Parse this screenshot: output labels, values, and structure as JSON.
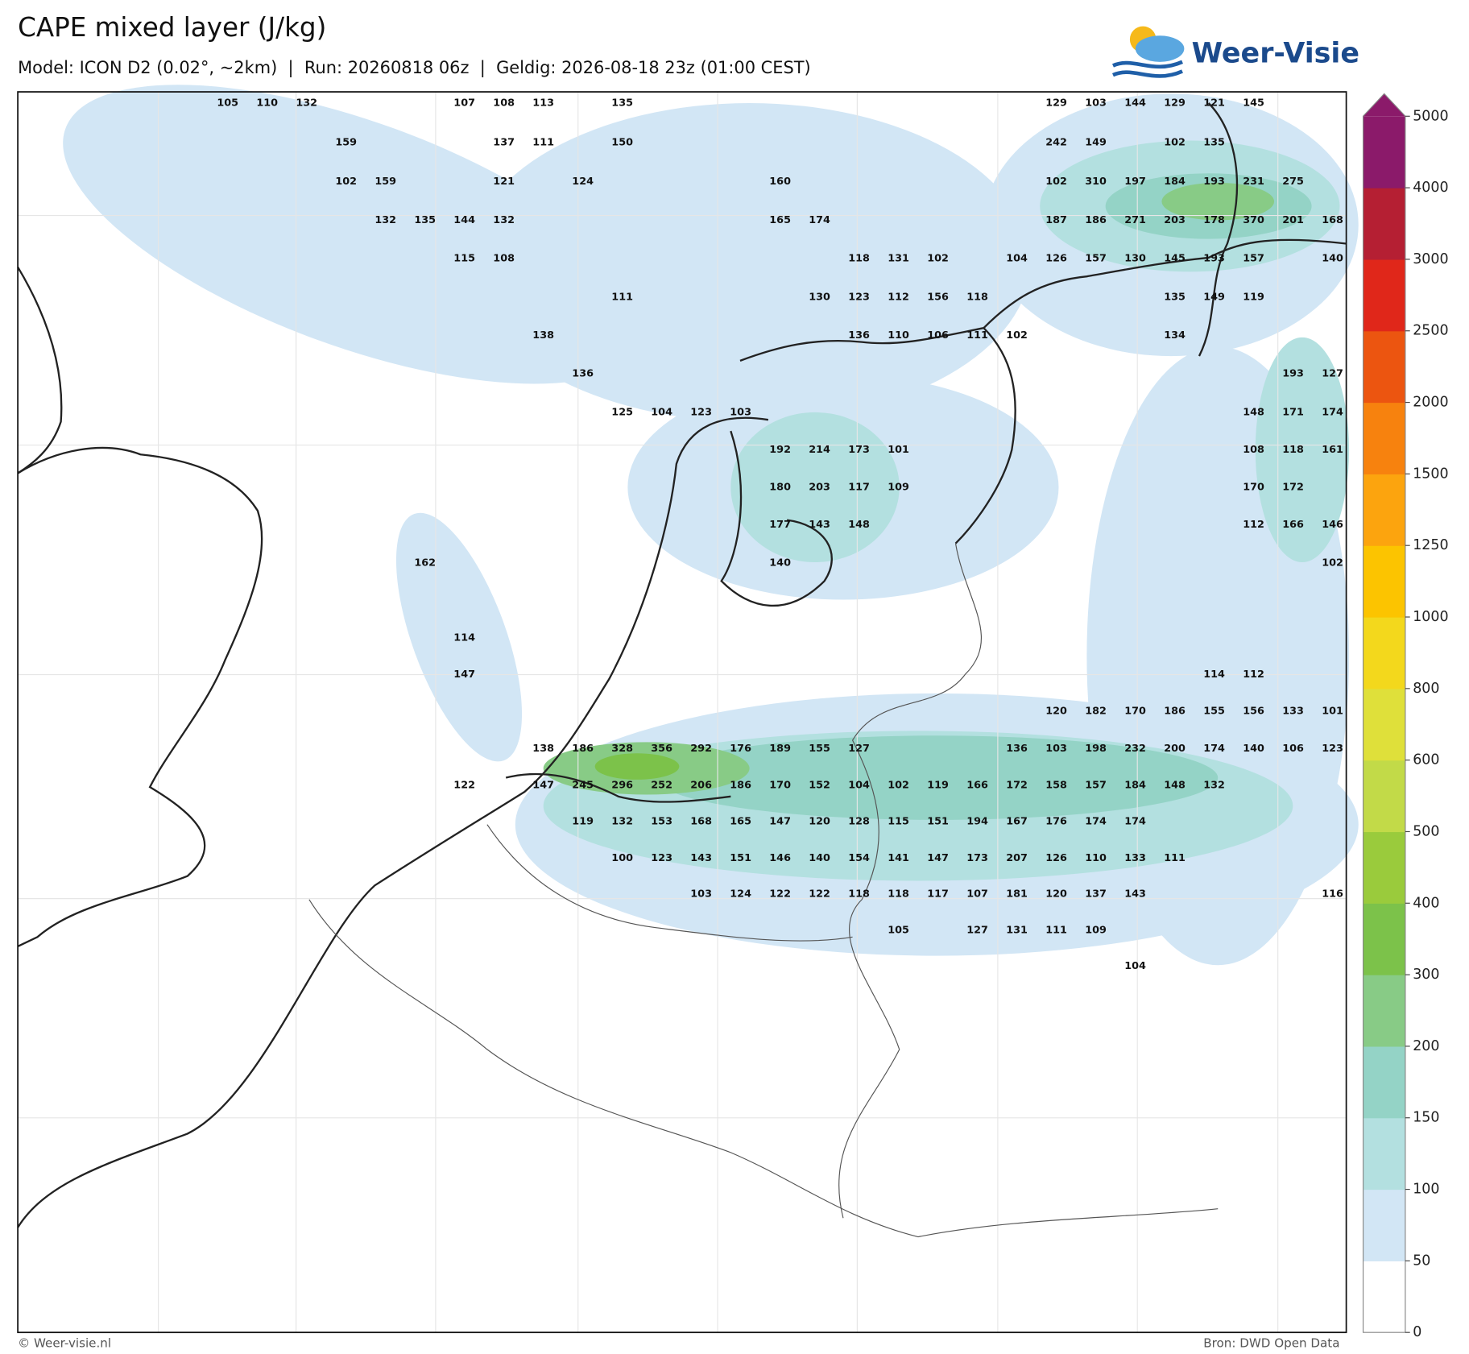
{
  "header": {
    "title": "CAPE mixed layer (J/kg)",
    "subtitle": "Model: ICON D2 (0.02°, ~2km)  |  Run: 20260818 06z  |  Geldig: 2026-08-18 23z (01:00 CEST)",
    "logo": "Weer-Visie"
  },
  "footer": {
    "left": "© Weer-visie.nl",
    "right": "Bron: DWD Open Data"
  },
  "colorbar": {
    "ticks": [
      0,
      50,
      100,
      150,
      200,
      300,
      400,
      500,
      600,
      800,
      1000,
      1250,
      1500,
      2000,
      2500,
      3000,
      4000,
      5000
    ],
    "colors": [
      "#ffffff",
      "#d2e6f5",
      "#b3e0e0",
      "#94d3c6",
      "#88cb86",
      "#7cc24a",
      "#9acb3c",
      "#c2da48",
      "#dfe03a",
      "#f3d81c",
      "#fcc400",
      "#fca40e",
      "#f7820e",
      "#ec5510",
      "#e0271a",
      "#b51f33",
      "#8b1a6a"
    ]
  },
  "map_labels": [
    [
      105,
      110,
      132,
      null,
      null,
      null,
      107,
      108,
      113,
      null,
      135,
      null,
      null,
      null,
      null,
      null,
      null,
      null,
      null,
      null,
      null,
      129,
      103,
      144,
      129,
      121,
      145,
      null,
      null
    ],
    [
      null,
      null,
      null,
      159,
      null,
      null,
      null,
      137,
      111,
      null,
      150,
      null,
      null,
      null,
      null,
      null,
      null,
      null,
      null,
      null,
      null,
      242,
      149,
      null,
      102,
      135,
      null,
      null,
      null
    ],
    [
      null,
      null,
      null,
      102,
      159,
      null,
      null,
      121,
      null,
      124,
      null,
      null,
      null,
      null,
      160,
      null,
      null,
      null,
      null,
      null,
      null,
      102,
      310,
      197,
      184,
      193,
      231,
      275,
      null
    ],
    [
      null,
      null,
      null,
      null,
      132,
      135,
      144,
      132,
      null,
      null,
      null,
      null,
      null,
      null,
      165,
      174,
      null,
      null,
      null,
      null,
      null,
      187,
      186,
      271,
      203,
      178,
      370,
      201,
      168
    ],
    [
      null,
      null,
      null,
      null,
      null,
      null,
      115,
      108,
      null,
      null,
      null,
      null,
      null,
      null,
      null,
      null,
      118,
      131,
      102,
      null,
      104,
      126,
      157,
      130,
      145,
      193,
      157,
      null,
      140
    ],
    [
      null,
      null,
      null,
      null,
      null,
      null,
      null,
      null,
      null,
      null,
      111,
      null,
      null,
      null,
      null,
      130,
      123,
      112,
      156,
      118,
      null,
      null,
      null,
      null,
      135,
      149,
      119,
      null,
      null
    ],
    [
      null,
      null,
      null,
      null,
      null,
      null,
      null,
      null,
      138,
      null,
      null,
      null,
      null,
      null,
      null,
      null,
      136,
      110,
      106,
      111,
      102,
      null,
      null,
      null,
      134,
      null,
      null,
      null,
      null
    ],
    [
      null,
      null,
      null,
      null,
      null,
      null,
      null,
      null,
      null,
      136,
      null,
      null,
      null,
      null,
      null,
      null,
      null,
      null,
      null,
      null,
      null,
      null,
      null,
      null,
      null,
      null,
      null,
      193,
      127
    ],
    [
      null,
      null,
      null,
      null,
      null,
      null,
      null,
      null,
      null,
      null,
      125,
      104,
      123,
      103,
      null,
      null,
      null,
      null,
      null,
      null,
      null,
      null,
      null,
      null,
      null,
      null,
      148,
      171,
      174
    ],
    [
      null,
      null,
      null,
      null,
      null,
      null,
      null,
      null,
      null,
      null,
      null,
      null,
      null,
      null,
      192,
      214,
      173,
      101,
      null,
      null,
      null,
      null,
      null,
      null,
      null,
      null,
      108,
      118,
      161
    ],
    [
      null,
      null,
      null,
      null,
      null,
      null,
      null,
      null,
      null,
      null,
      null,
      null,
      null,
      null,
      180,
      203,
      117,
      109,
      null,
      null,
      null,
      null,
      null,
      null,
      null,
      null,
      170,
      172,
      null
    ],
    [
      null,
      null,
      null,
      null,
      null,
      null,
      null,
      null,
      null,
      null,
      null,
      null,
      null,
      null,
      177,
      143,
      148,
      null,
      null,
      null,
      null,
      null,
      null,
      null,
      null,
      null,
      112,
      166,
      146
    ],
    [
      null,
      null,
      null,
      null,
      null,
      162,
      null,
      null,
      null,
      null,
      null,
      null,
      null,
      null,
      140,
      null,
      null,
      null,
      null,
      null,
      null,
      null,
      null,
      null,
      null,
      null,
      null,
      null,
      102
    ],
    [
      null,
      null,
      null,
      null,
      null,
      null,
      114,
      null,
      null,
      null,
      null,
      null,
      null,
      null,
      null,
      null,
      null,
      null,
      null,
      null,
      null,
      null,
      null,
      null,
      null,
      null,
      null,
      null,
      null
    ],
    [
      null,
      null,
      null,
      null,
      null,
      null,
      147,
      null,
      null,
      null,
      null,
      null,
      null,
      null,
      null,
      null,
      null,
      null,
      null,
      null,
      null,
      null,
      null,
      null,
      null,
      114,
      112,
      null,
      null
    ],
    [
      null,
      null,
      null,
      null,
      null,
      null,
      null,
      null,
      null,
      null,
      null,
      null,
      null,
      null,
      null,
      null,
      null,
      null,
      null,
      null,
      null,
      120,
      182,
      170,
      186,
      155,
      156,
      133,
      101
    ],
    [
      null,
      null,
      null,
      null,
      null,
      null,
      null,
      null,
      138,
      186,
      328,
      356,
      292,
      176,
      189,
      155,
      127,
      null,
      null,
      null,
      136,
      103,
      198,
      232,
      200,
      174,
      140,
      106,
      123
    ],
    [
      null,
      null,
      null,
      null,
      null,
      null,
      122,
      null,
      147,
      245,
      296,
      252,
      206,
      186,
      170,
      152,
      104,
      102,
      119,
      166,
      172,
      158,
      157,
      184,
      148,
      132,
      null,
      null,
      null
    ],
    [
      null,
      null,
      null,
      null,
      null,
      null,
      null,
      null,
      null,
      119,
      132,
      153,
      168,
      165,
      147,
      120,
      128,
      115,
      151,
      194,
      167,
      176,
      174,
      174,
      null,
      null,
      null,
      null,
      null
    ],
    [
      null,
      null,
      null,
      null,
      null,
      null,
      null,
      null,
      null,
      null,
      100,
      123,
      143,
      151,
      146,
      140,
      154,
      141,
      147,
      173,
      207,
      126,
      110,
      133,
      111,
      null,
      null,
      null,
      null
    ],
    [
      null,
      null,
      null,
      null,
      null,
      null,
      null,
      null,
      null,
      null,
      null,
      null,
      103,
      124,
      122,
      122,
      118,
      118,
      117,
      107,
      181,
      120,
      137,
      143,
      null,
      null,
      null,
      null,
      116
    ],
    [
      null,
      null,
      null,
      null,
      null,
      null,
      null,
      null,
      null,
      null,
      null,
      null,
      null,
      null,
      null,
      null,
      null,
      105,
      null,
      127,
      131,
      111,
      109,
      null,
      null,
      null,
      null,
      null,
      null
    ],
    [
      null,
      null,
      null,
      null,
      null,
      null,
      null,
      null,
      null,
      null,
      null,
      null,
      null,
      null,
      null,
      null,
      null,
      null,
      null,
      null,
      null,
      null,
      null,
      104,
      null,
      null,
      null,
      null,
      null
    ]
  ]
}
